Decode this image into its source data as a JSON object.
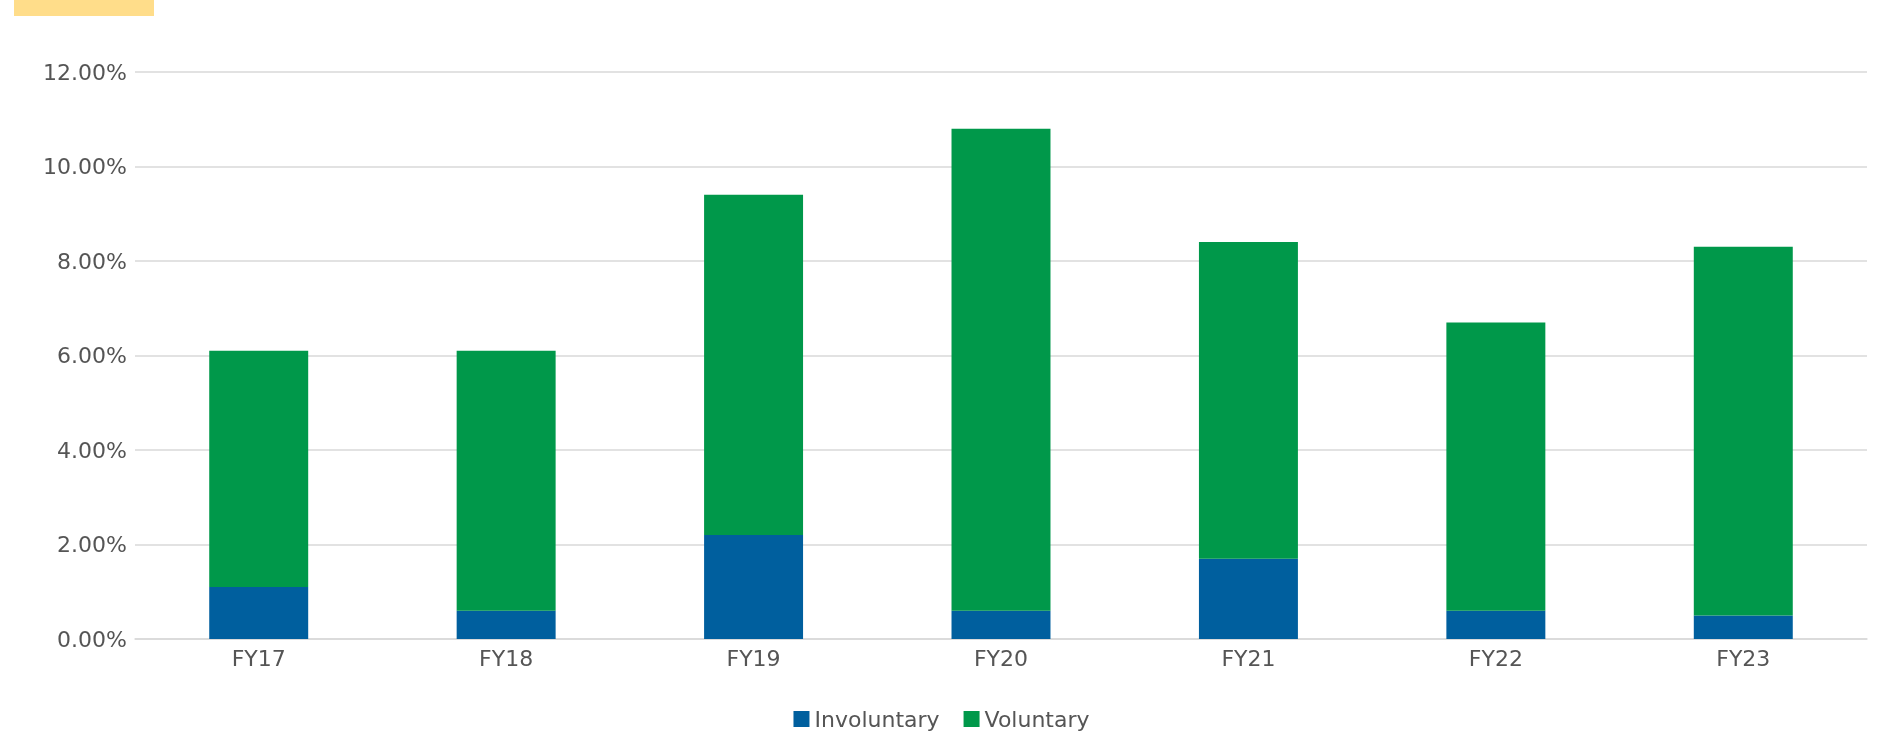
{
  "chart_data": {
    "type": "bar",
    "stacked": true,
    "categories": [
      "FY17",
      "FY18",
      "FY19",
      "FY20",
      "FY21",
      "FY22",
      "FY23"
    ],
    "series": [
      {
        "name": "Involuntary",
        "color": "#005f9e",
        "values": [
          1.1,
          0.6,
          2.2,
          0.6,
          1.7,
          0.6,
          0.5
        ]
      },
      {
        "name": "Voluntary",
        "color": "#00984a",
        "values": [
          5.0,
          5.5,
          7.2,
          10.2,
          6.7,
          6.1,
          7.8
        ]
      }
    ],
    "ylim": [
      0,
      12
    ],
    "yticks": [
      {
        "value": 0,
        "label": "0.00%"
      },
      {
        "value": 2,
        "label": "2.00%"
      },
      {
        "value": 4,
        "label": "4.00%"
      },
      {
        "value": 6,
        "label": "6.00%"
      },
      {
        "value": 8,
        "label": "8.00%"
      },
      {
        "value": 10,
        "label": "10.00%"
      },
      {
        "value": 12,
        "label": "12.00%"
      }
    ],
    "grid": "y",
    "legend": "bottom"
  }
}
